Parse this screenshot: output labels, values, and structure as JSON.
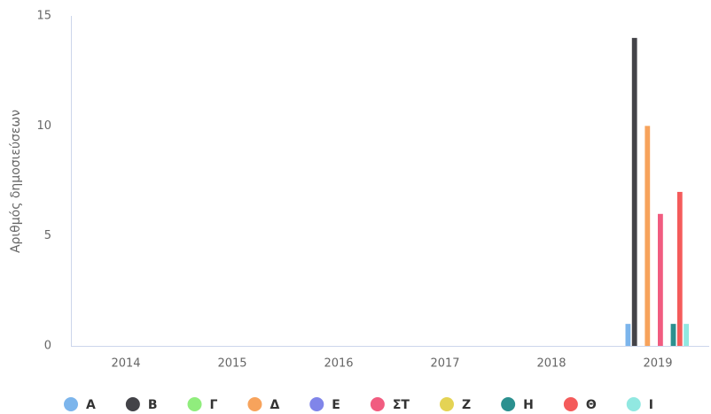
{
  "chart_data": {
    "type": "bar",
    "y_label": "Αριθμός δημοσιεύσεων",
    "categories": [
      "2014",
      "2015",
      "2016",
      "2017",
      "2018",
      "2019"
    ],
    "series": [
      {
        "name": "Α",
        "color": "#7cb5ec",
        "values": [
          0,
          0,
          0,
          0,
          0,
          1
        ]
      },
      {
        "name": "Β",
        "color": "#434348",
        "values": [
          0,
          0,
          0,
          0,
          0,
          14
        ]
      },
      {
        "name": "Γ",
        "color": "#90ed7d",
        "values": [
          0,
          0,
          0,
          0,
          0,
          0
        ]
      },
      {
        "name": "Δ",
        "color": "#f7a35c",
        "values": [
          0,
          0,
          0,
          0,
          0,
          10
        ]
      },
      {
        "name": "Ε",
        "color": "#8085e9",
        "values": [
          0,
          0,
          0,
          0,
          0,
          0
        ]
      },
      {
        "name": "ΣΤ",
        "color": "#f15c80",
        "values": [
          0,
          0,
          0,
          0,
          0,
          6
        ]
      },
      {
        "name": "Ζ",
        "color": "#e4d354",
        "values": [
          0,
          0,
          0,
          0,
          0,
          0
        ]
      },
      {
        "name": "Η",
        "color": "#2b908f",
        "values": [
          0,
          0,
          0,
          0,
          0,
          1
        ]
      },
      {
        "name": "Θ",
        "color": "#f45b5b",
        "values": [
          0,
          0,
          0,
          0,
          0,
          7
        ]
      },
      {
        "name": "Ι",
        "color": "#91e8e1",
        "values": [
          0,
          0,
          0,
          0,
          0,
          1
        ]
      }
    ],
    "ylim": [
      0,
      15
    ],
    "yticks": [
      0,
      5,
      10,
      15
    ],
    "grid": false,
    "legend": "bottom"
  }
}
